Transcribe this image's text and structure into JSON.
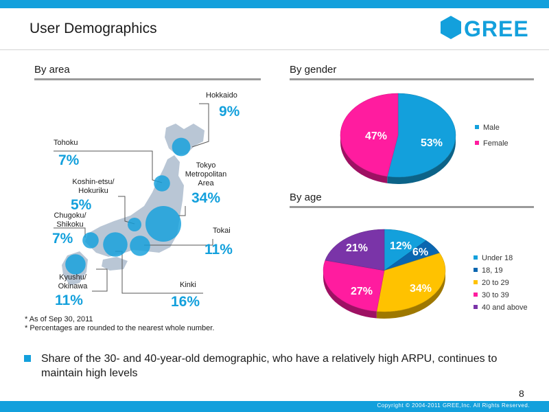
{
  "title": "User Demographics",
  "logo": {
    "text": "GREE"
  },
  "sections": {
    "area": "By area",
    "gender": "By gender",
    "age": "By age"
  },
  "colors": {
    "brand": "#13a0dc",
    "map_land": "#b9c6d5",
    "male": "#13a0dc",
    "female": "#ff1c9f",
    "under18": "#13a0dc",
    "age18_19": "#0a66b0",
    "age20_29": "#ffc200",
    "age30_39": "#ff1c9f",
    "age40plus": "#7a34a8"
  },
  "chart_data": [
    {
      "type": "bubble-map",
      "title": "By area",
      "unit": "%",
      "regions": [
        {
          "name": "Hokkaido",
          "value": 9
        },
        {
          "name": "Tohoku",
          "value": 7
        },
        {
          "name": "Tokyo Metropolitan Area",
          "value": 34
        },
        {
          "name": "Koshin-etsu/ Hokuriku",
          "value": 5
        },
        {
          "name": "Chugoku/ Shikoku",
          "value": 7
        },
        {
          "name": "Tokai",
          "value": 11
        },
        {
          "name": "Kyushu/ Okinawa",
          "value": 11
        },
        {
          "name": "Kinki",
          "value": 16
        }
      ]
    },
    {
      "type": "pie",
      "title": "By gender",
      "unit": "%",
      "slices": [
        {
          "label": "Male",
          "value": 53
        },
        {
          "label": "Female",
          "value": 47
        }
      ]
    },
    {
      "type": "pie",
      "title": "By age",
      "unit": "%",
      "slices": [
        {
          "label": "Under 18",
          "value": 12
        },
        {
          "label": "18, 19",
          "value": 6
        },
        {
          "label": "20 to 29",
          "value": 34
        },
        {
          "label": "30 to 39",
          "value": 27
        },
        {
          "label": "40 and above",
          "value": 21
        }
      ]
    }
  ],
  "area_labels": {
    "hokkaido": {
      "name": "Hokkaido",
      "pct": "9%"
    },
    "tohoku": {
      "name": "Tohoku",
      "pct": "7%"
    },
    "tokyo": {
      "line1": "Tokyo",
      "line2": "Metropolitan",
      "line3": "Area",
      "pct": "34%"
    },
    "koshin": {
      "line1": "Koshin-etsu/",
      "line2": "Hokuriku",
      "pct": "5%"
    },
    "chugoku": {
      "line1": "Chugoku/",
      "line2": "Shikoku",
      "pct": "7%"
    },
    "tokai": {
      "name": "Tokai",
      "pct": "11%"
    },
    "kyushu": {
      "line1": "Kyushu/",
      "line2": "Okinawa",
      "pct": "11%"
    },
    "kinki": {
      "name": "Kinki",
      "pct": "16%"
    }
  },
  "gender_labels": {
    "male_pct": "53%",
    "female_pct": "47%"
  },
  "age_labels": {
    "under18_pct": "12%",
    "age18_19_pct": "6%",
    "age20_29_pct": "34%",
    "age30_39_pct": "27%",
    "age40plus_pct": "21%"
  },
  "gender_legend": [
    "Male",
    "Female"
  ],
  "age_legend": [
    "Under 18",
    "18, 19",
    "20 to 29",
    "30 to 39",
    "40 and above"
  ],
  "footnotes": [
    "* As of Sep 30, 2011",
    "* Percentages are rounded to the nearest whole number."
  ],
  "bullet": "Share of the 30- and 40-year-old demographic, who have a relatively high ARPU, continues to maintain high levels",
  "page_number": "8",
  "copyright": "Copyright © 2004-2011 GREE,Inc. All Rights Reserved."
}
